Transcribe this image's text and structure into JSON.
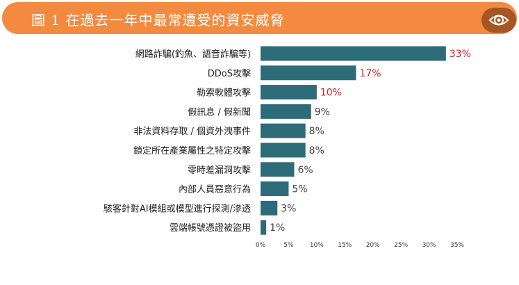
{
  "title": "圖 1 在過去一年中最常遭受的資安威脅",
  "icon": "eye-icon",
  "colors": {
    "banner": "#f38a3f",
    "icon_bg": "#a65622",
    "bar": "#2e6b78",
    "highlight_value": "#c62828",
    "normal_value": "#444444"
  },
  "chart_data": {
    "type": "bar",
    "orientation": "horizontal",
    "categories": [
      "網路詐騙(釣魚、語音詐騙等)",
      "DDoS攻擊",
      "勒索軟體攻擊",
      "假訊息 / 假新聞",
      "非法資料存取 / 個資外洩事件",
      "鎖定所在產業屬性之特定攻擊",
      "零時差漏洞攻擊",
      "內部人員惡意行為",
      "駭客針對AI模組或模型進行探測/滲透",
      "雲端帳號憑證被盜用"
    ],
    "values": [
      33,
      17,
      10,
      9,
      8,
      8,
      6,
      5,
      3,
      1
    ],
    "value_labels": [
      "33%",
      "17%",
      "10%",
      "9%",
      "8%",
      "8%",
      "6%",
      "5%",
      "3%",
      "1%"
    ],
    "highlighted": [
      true,
      true,
      true,
      false,
      false,
      false,
      false,
      false,
      false,
      false
    ],
    "xticks": [
      "0%",
      "5%",
      "10%",
      "15%",
      "20%",
      "25%",
      "30%",
      "35%"
    ],
    "xlim": [
      0,
      35
    ],
    "grid": false
  }
}
